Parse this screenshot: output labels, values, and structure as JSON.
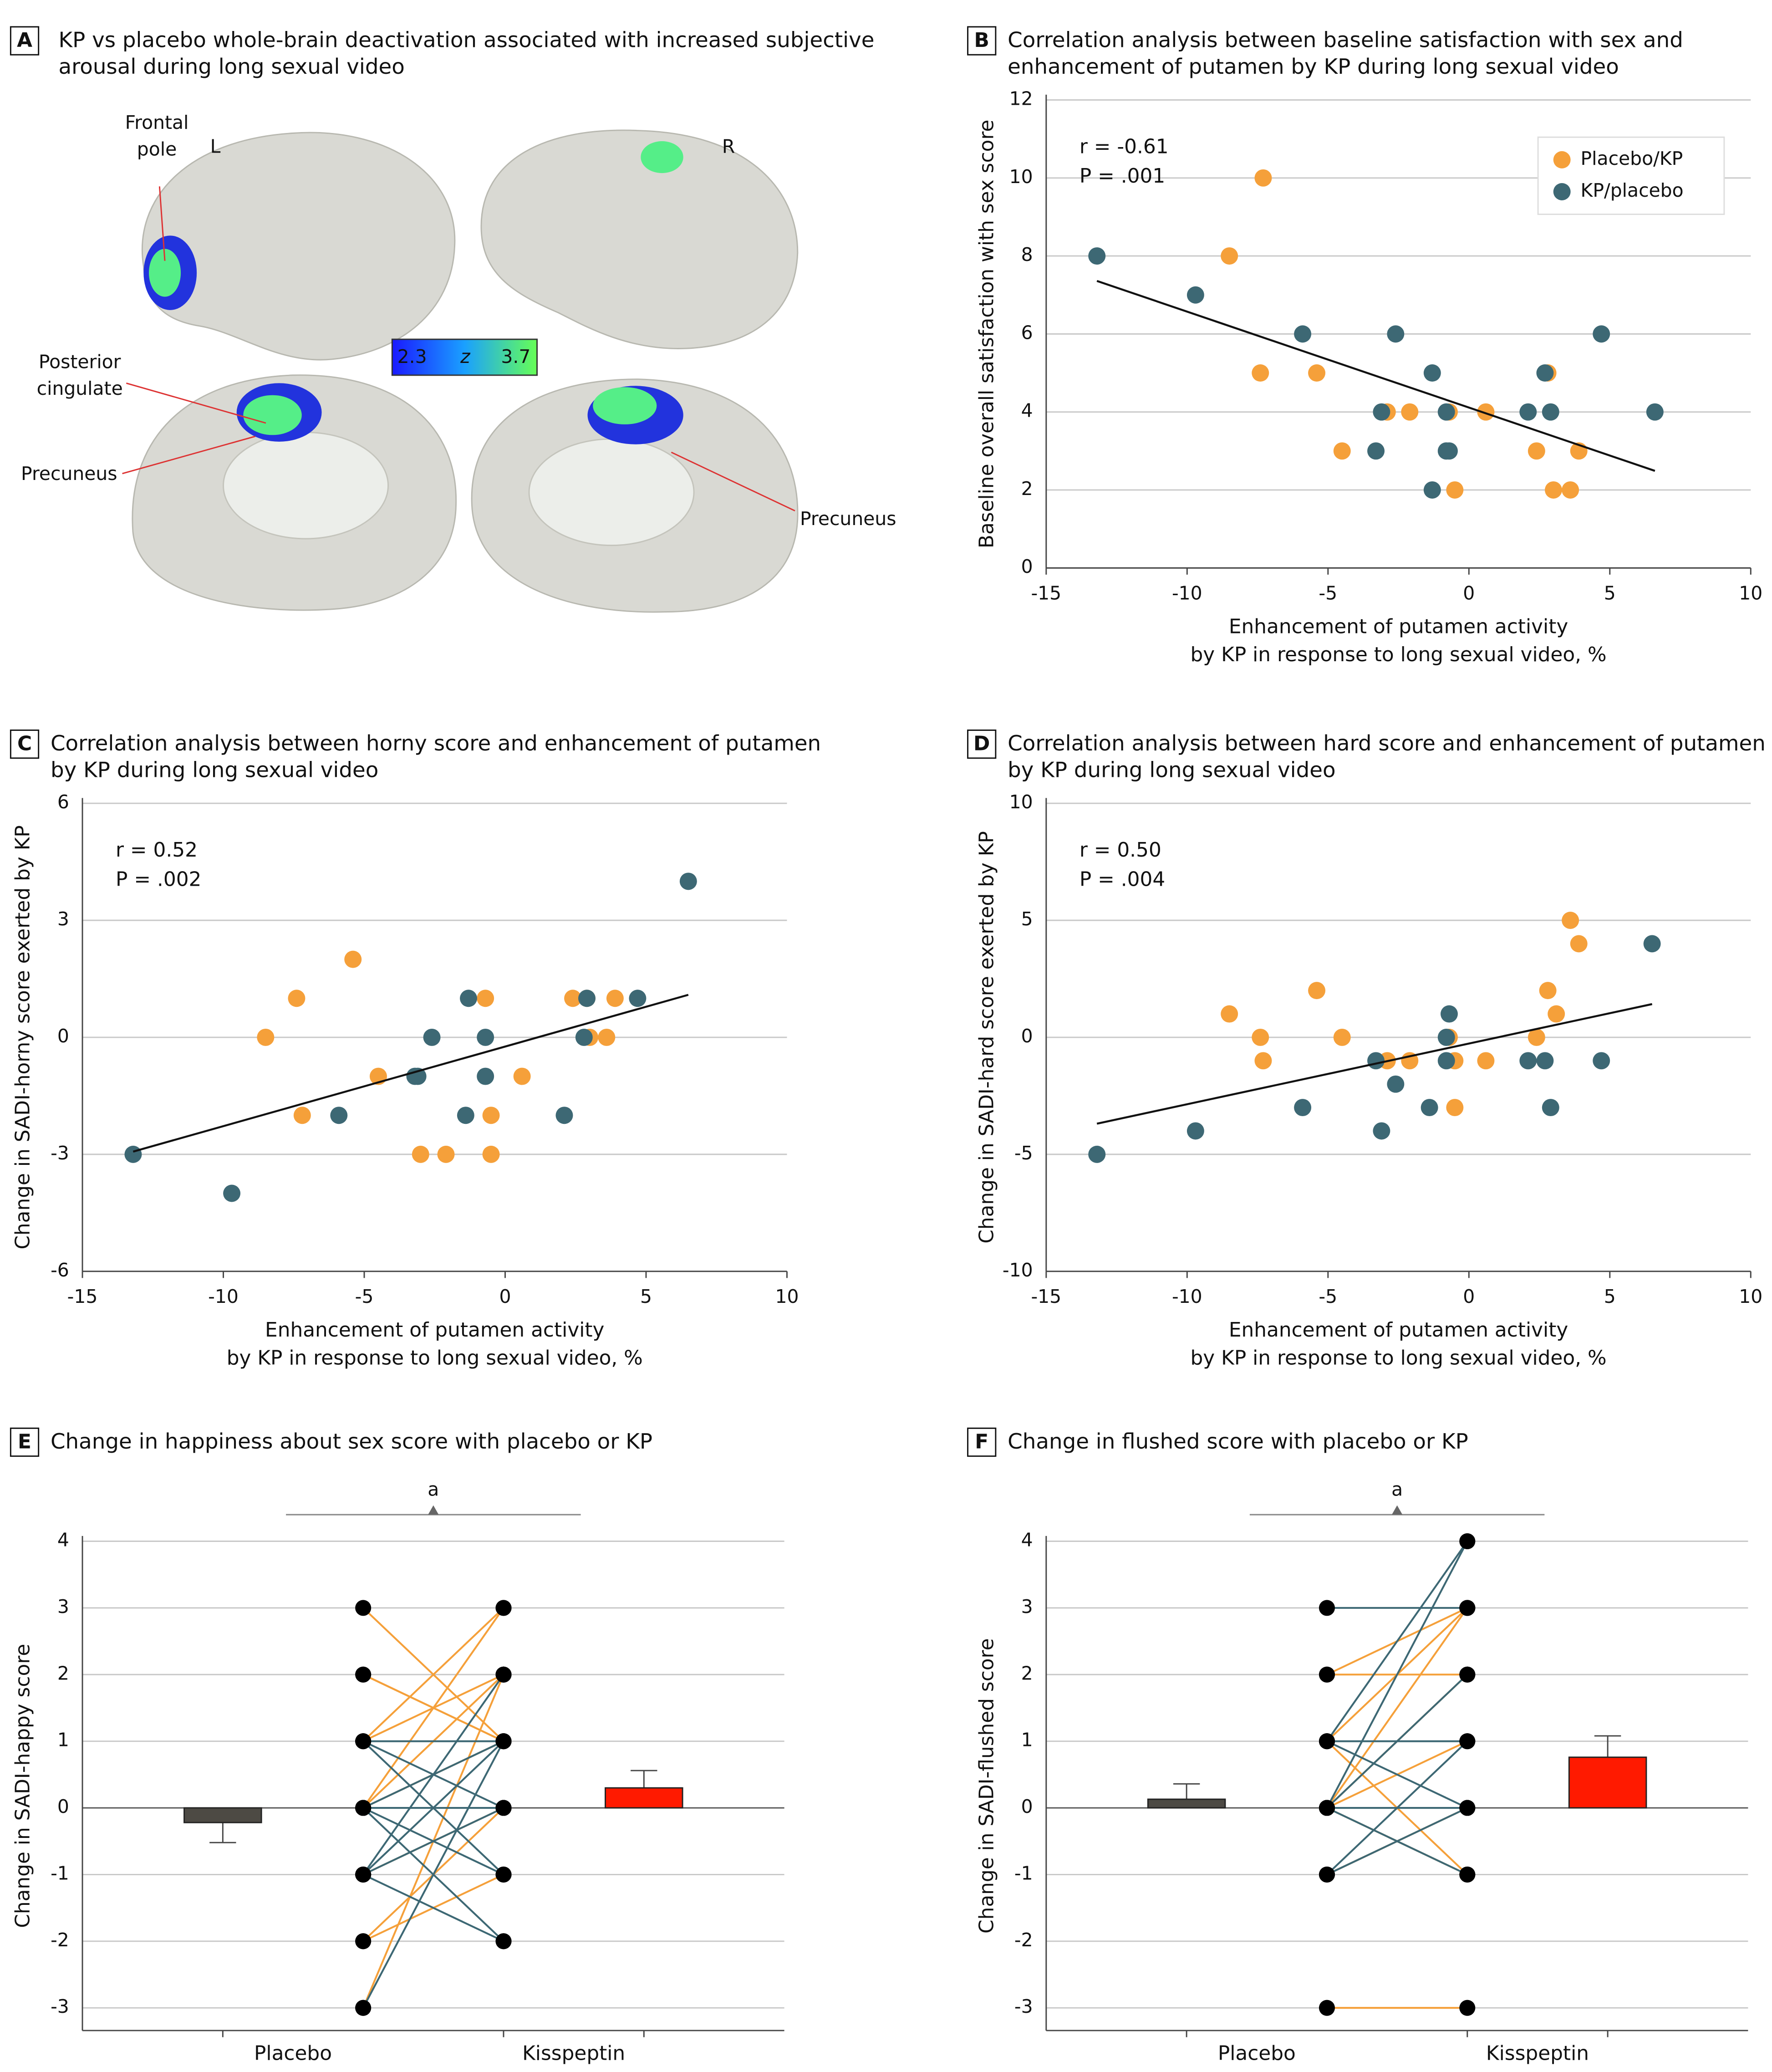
{
  "brain_panel": {
    "panel": "A",
    "title": [
      "KP vs placebo whole-brain deactivation associated with increased subjective",
      "arousal during long sexual video"
    ],
    "labels": [
      "Frontal",
      "pole",
      "L",
      "R",
      "Posterior",
      "cingulate",
      "Precuneus",
      "Precuneus"
    ],
    "colorbar": {
      "ticks": [
        2.3,
        3.7
      ],
      "label": "z"
    }
  },
  "chart_data": [
    {
      "type": "scatter",
      "panel": "B",
      "title": [
        "Correlation analysis between baseline satisfaction with sex and",
        "enhancement of putamen by KP during long sexual video"
      ],
      "xlabel": [
        "Enhancement of putamen activity",
        "by KP in response to long sexual video, %"
      ],
      "ylabel": "Baseline overall satisfaction with sex score",
      "annotations": [
        "r = -0.61",
        "P = .001"
      ],
      "xlim": [
        -15,
        10
      ],
      "xticks": [
        -15,
        -10,
        -5,
        0,
        5,
        10
      ],
      "ylim": [
        0,
        12
      ],
      "yticks": [
        0,
        2,
        4,
        6,
        8,
        10,
        12
      ],
      "grid": true,
      "legend": "upper right",
      "series": [
        {
          "name": "Placebo/KP",
          "color": "#f5a03a",
          "x": [
            -7.3,
            -8.5,
            -7.4,
            -5.4,
            -4.5,
            -2.9,
            -2.1,
            -0.7,
            -0.5,
            0.6,
            2.4,
            2.8,
            3.0,
            3.6,
            3.9
          ],
          "values": [
            10,
            8,
            5,
            5,
            3,
            4,
            4,
            4,
            2,
            4,
            3,
            5,
            2,
            2,
            3
          ]
        },
        {
          "name": "KP/placebo",
          "color": "#3d6874",
          "x": [
            -13.2,
            -9.7,
            -5.9,
            -3.3,
            -3.1,
            -2.6,
            -1.3,
            -1.3,
            -0.8,
            -0.7,
            -0.8,
            2.1,
            2.7,
            2.9,
            4.7,
            6.6
          ],
          "values": [
            8,
            7,
            6,
            3,
            4,
            6,
            5,
            2,
            3,
            3,
            4,
            4,
            5,
            4,
            6,
            4
          ]
        }
      ],
      "fit_line": {
        "x": [
          -13.2,
          6.6
        ],
        "values": [
          7.36,
          2.49
        ]
      }
    },
    {
      "type": "scatter",
      "panel": "C",
      "title": [
        "Correlation analysis between horny score and enhancement of putamen",
        "by KP during long sexual video"
      ],
      "xlabel": [
        "Enhancement of putamen activity",
        "by KP in response to long sexual video, %"
      ],
      "ylabel": "Change in SADI-horny score exerted by KP",
      "annotations": [
        "r = 0.52",
        "P = .002"
      ],
      "xlim": [
        -15,
        10
      ],
      "xticks": [
        -15,
        -10,
        -5,
        0,
        5,
        10
      ],
      "ylim": [
        -6,
        6
      ],
      "yticks": [
        -6,
        -3,
        0,
        3,
        6
      ],
      "grid": true,
      "series": [
        {
          "color": "#f5a03a",
          "x": [
            -8.5,
            -7.4,
            -7.2,
            -5.4,
            -4.5,
            -3.0,
            -2.1,
            -0.7,
            -0.5,
            -0.5,
            0.6,
            2.4,
            2.9,
            3.0,
            3.6,
            3.9
          ],
          "values": [
            0,
            1,
            -2,
            2,
            -1,
            -3,
            -3,
            1,
            -2,
            -3,
            -1,
            1,
            1,
            0,
            0,
            1
          ]
        },
        {
          "color": "#3d6874",
          "x": [
            -13.2,
            -9.7,
            -5.9,
            -3.2,
            -3.1,
            -2.6,
            -1.3,
            -1.4,
            -0.7,
            -0.7,
            2.1,
            2.8,
            2.9,
            4.7,
            6.5
          ],
          "values": [
            -3,
            -4,
            -2,
            -1,
            -1,
            0,
            1,
            -2,
            -1,
            0,
            -2,
            0,
            1,
            1,
            4
          ]
        }
      ],
      "fit_line": {
        "x": [
          -13.2,
          6.5
        ],
        "values": [
          -2.93,
          1.09
        ]
      }
    },
    {
      "type": "scatter",
      "panel": "D",
      "title": [
        "Correlation analysis between hard score and enhancement of putamen",
        "by KP during long sexual video"
      ],
      "xlabel": [
        "Enhancement of putamen activity",
        "by KP in response to long sexual video, %"
      ],
      "ylabel": "Change in SADI-hard score exerted by KP",
      "annotations": [
        "r = 0.50",
        "P = .004"
      ],
      "xlim": [
        -15,
        10
      ],
      "xticks": [
        -15,
        -10,
        -5,
        0,
        5,
        10
      ],
      "ylim": [
        -10,
        10
      ],
      "yticks": [
        -10,
        -5,
        0,
        5,
        10
      ],
      "grid": true,
      "series": [
        {
          "color": "#f5a03a",
          "x": [
            -8.5,
            -7.4,
            -7.3,
            -5.4,
            -4.5,
            -2.9,
            -2.1,
            -0.7,
            -0.5,
            -0.5,
            0.6,
            2.4,
            2.8,
            3.1,
            3.6,
            3.9
          ],
          "values": [
            1,
            0,
            -1,
            2,
            0,
            -1,
            -1,
            0,
            -3,
            -1,
            -1,
            0,
            2,
            1,
            5,
            4
          ]
        },
        {
          "color": "#3d6874",
          "x": [
            -13.2,
            -9.7,
            -5.9,
            -3.3,
            -3.1,
            -2.6,
            -1.4,
            -0.8,
            -0.7,
            -0.8,
            2.1,
            2.7,
            2.9,
            4.7,
            6.5
          ],
          "values": [
            -5,
            -4,
            -3,
            -1,
            -4,
            -2,
            -3,
            -1,
            1,
            0,
            -1,
            -1,
            -3,
            -1,
            4
          ]
        }
      ],
      "fit_line": {
        "x": [
          -13.2,
          6.5
        ],
        "values": [
          -3.69,
          1.42
        ]
      }
    },
    {
      "type": "paired",
      "panel": "E",
      "title": [
        "Change in happiness about sex score with placebo or KP"
      ],
      "ylabel": "Change in SADI-happy score",
      "categories": [
        "Placebo",
        "Kisspeptin"
      ],
      "annotation": "a",
      "ylim": [
        -3.34,
        4
      ],
      "yticks": [
        -3,
        -2,
        -1,
        0,
        1,
        2,
        3,
        4
      ],
      "grid": true,
      "bars": {
        "values": [
          -0.22,
          0.3
        ],
        "errors": [
          0.3,
          0.26
        ],
        "colors": [
          "#4d4a44",
          "#ff1a00"
        ]
      },
      "series": [
        {
          "color": "#f5a03a",
          "placebo": [
            3,
            2,
            1,
            0,
            0,
            1,
            -1,
            -2,
            -2,
            0,
            -3,
            2
          ],
          "kisspeptin": [
            1,
            1,
            2,
            2,
            1,
            3,
            0,
            -1,
            0,
            3,
            2,
            1
          ]
        },
        {
          "color": "#3d6874",
          "placebo": [
            1,
            0,
            0,
            -1,
            -1,
            -1,
            -3,
            0,
            1,
            0,
            -1,
            1
          ],
          "kisspeptin": [
            1,
            0,
            1,
            1,
            0,
            -2,
            1,
            -2,
            -1,
            -1,
            2,
            0
          ]
        }
      ]
    },
    {
      "type": "paired",
      "panel": "F",
      "title": [
        "Change in flushed score with placebo or KP"
      ],
      "ylabel": "Change in SADI-flushed score",
      "categories": [
        "Placebo",
        "Kisspeptin"
      ],
      "annotation": "a",
      "ylim": [
        -3.34,
        4
      ],
      "yticks": [
        -3,
        -2,
        -1,
        0,
        1,
        2,
        3,
        4
      ],
      "grid": true,
      "bars": {
        "values": [
          0.13,
          0.76
        ],
        "errors": [
          0.23,
          0.32
        ],
        "colors": [
          "#4d4a44",
          "#ff1a00"
        ]
      },
      "series": [
        {
          "color": "#f5a03a",
          "placebo": [
            2,
            -3,
            0,
            0,
            1,
            1,
            0,
            -1,
            2,
            0
          ],
          "kisspeptin": [
            2,
            -3,
            3,
            2,
            3,
            -1,
            1,
            0,
            3,
            -1
          ]
        },
        {
          "color": "#3d6874",
          "placebo": [
            3,
            1,
            0,
            0,
            -1,
            0,
            1,
            1,
            -1,
            0
          ],
          "kisspeptin": [
            3,
            1,
            0,
            4,
            1,
            -1,
            0,
            4,
            0,
            2
          ]
        }
      ]
    }
  ]
}
